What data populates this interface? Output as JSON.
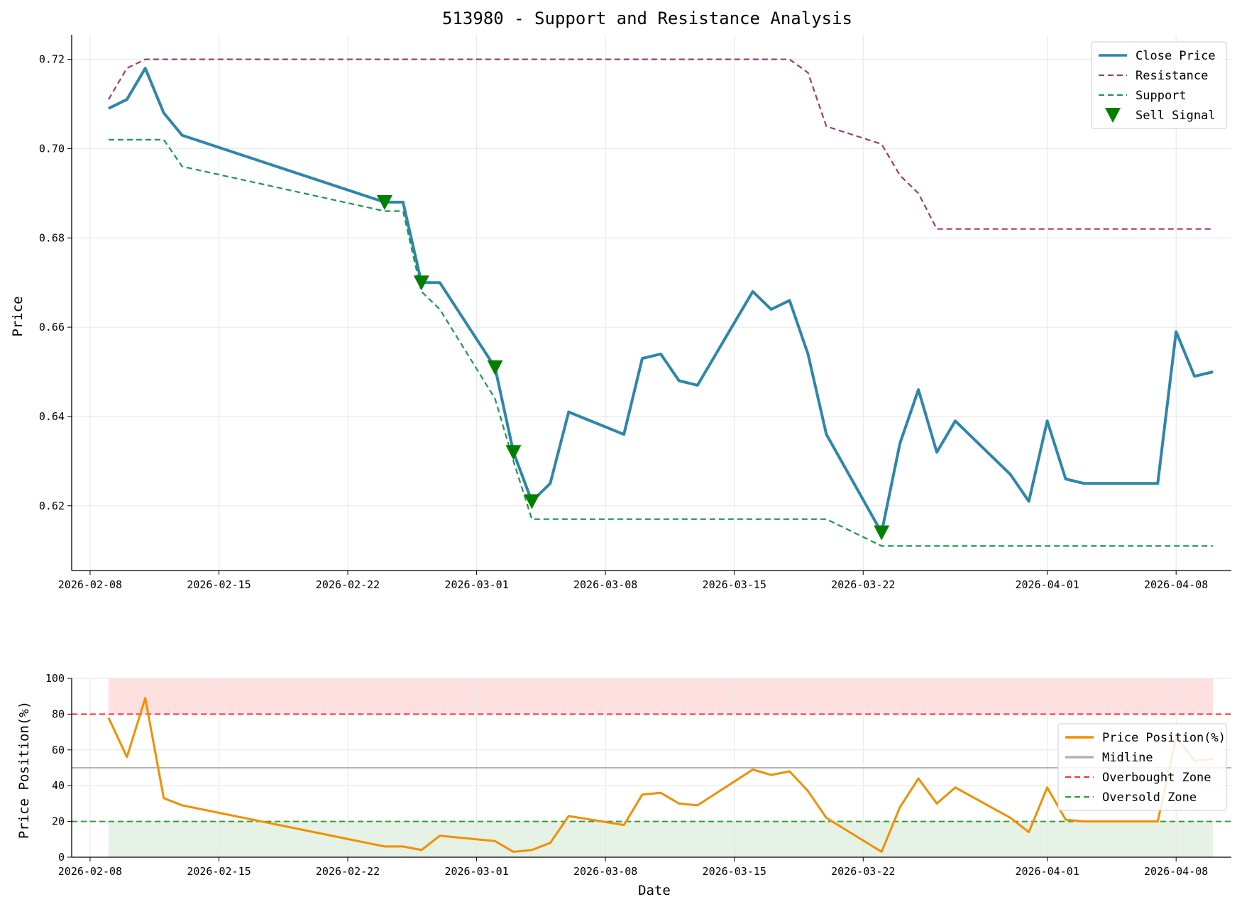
{
  "chart_data": [
    {
      "type": "line",
      "title": "513980 - Support and Resistance Analysis",
      "xlabel": "",
      "ylabel": "Price",
      "ylim": [
        0.6055,
        0.7255
      ],
      "xlim": [
        "2026-02-07",
        "2026-04-11"
      ],
      "grid": true,
      "legend": "top-right",
      "xticks": [
        "2026-02-08",
        "2026-02-15",
        "2026-02-22",
        "2026-03-01",
        "2026-03-08",
        "2026-03-15",
        "2026-03-22",
        "2026-04-01",
        "2026-04-08"
      ],
      "yticks": [
        0.62,
        0.64,
        0.66,
        0.68,
        0.7,
        0.72
      ],
      "ytick_labels": [
        "0.62",
        "0.64",
        "0.66",
        "0.68",
        "0.70",
        "0.72"
      ],
      "x": [
        "2026-02-09",
        "2026-02-10",
        "2026-02-11",
        "2026-02-12",
        "2026-02-13",
        "2026-02-24",
        "2026-02-25",
        "2026-02-26",
        "2026-02-27",
        "2026-03-02",
        "2026-03-03",
        "2026-03-04",
        "2026-03-05",
        "2026-03-06",
        "2026-03-09",
        "2026-03-10",
        "2026-03-11",
        "2026-03-12",
        "2026-03-13",
        "2026-03-16",
        "2026-03-17",
        "2026-03-18",
        "2026-03-19",
        "2026-03-20",
        "2026-03-23",
        "2026-03-24",
        "2026-03-25",
        "2026-03-26",
        "2026-03-27",
        "2026-03-30",
        "2026-03-31",
        "2026-04-01",
        "2026-04-02",
        "2026-04-03",
        "2026-04-06",
        "2026-04-07",
        "2026-04-08",
        "2026-04-09",
        "2026-04-10"
      ],
      "series": [
        {
          "name": "Close Price",
          "color": "#2E86AB",
          "style": "solid",
          "values": [
            0.709,
            0.711,
            0.718,
            0.708,
            0.703,
            0.688,
            0.688,
            0.67,
            0.67,
            0.651,
            0.632,
            0.621,
            0.625,
            0.641,
            0.636,
            0.653,
            0.654,
            0.648,
            0.647,
            0.668,
            0.664,
            0.666,
            0.654,
            0.636,
            0.614,
            0.634,
            0.646,
            0.632,
            0.639,
            0.627,
            0.621,
            0.639,
            0.626,
            0.625,
            0.625,
            0.625,
            0.659,
            0.649,
            0.65
          ]
        },
        {
          "name": "Resistance",
          "color": "#A23B72",
          "style": "dashed",
          "values": [
            0.711,
            0.718,
            0.72,
            0.72,
            0.72,
            0.72,
            0.72,
            0.72,
            0.72,
            0.72,
            0.72,
            0.72,
            0.72,
            0.72,
            0.72,
            0.72,
            0.72,
            0.72,
            0.72,
            0.72,
            0.72,
            0.72,
            0.717,
            0.705,
            0.701,
            0.694,
            0.69,
            0.682,
            0.682,
            0.682,
            0.682,
            0.682,
            0.682,
            0.682,
            0.682,
            0.682,
            0.682,
            0.682,
            0.682
          ]
        },
        {
          "name": "Support",
          "color": "#1A9850",
          "style": "dashed",
          "values": [
            0.702,
            0.702,
            0.702,
            0.702,
            0.696,
            0.686,
            0.686,
            0.668,
            0.664,
            0.644,
            0.63,
            0.617,
            0.617,
            0.617,
            0.617,
            0.617,
            0.617,
            0.617,
            0.617,
            0.617,
            0.617,
            0.617,
            0.617,
            0.617,
            0.611,
            0.611,
            0.611,
            0.611,
            0.611,
            0.611,
            0.611,
            0.611,
            0.611,
            0.611,
            0.611,
            0.611,
            0.611,
            0.611,
            0.611
          ]
        }
      ],
      "markers": {
        "name": "Sell Signal",
        "color": "#008000",
        "symbol": "triangle-down",
        "x": [
          "2026-02-24",
          "2026-02-26",
          "2026-03-02",
          "2026-03-03",
          "2026-03-04",
          "2026-03-23"
        ],
        "y": [
          0.688,
          0.67,
          0.651,
          0.632,
          0.621,
          0.614
        ]
      }
    },
    {
      "type": "line",
      "title": "",
      "xlabel": "Date",
      "ylabel": "Price Position(%)",
      "ylim": [
        0,
        100
      ],
      "xlim": [
        "2026-02-07",
        "2026-04-11"
      ],
      "grid": true,
      "legend": "right",
      "xticks": [
        "2026-02-08",
        "2026-02-15",
        "2026-02-22",
        "2026-03-01",
        "2026-03-08",
        "2026-03-15",
        "2026-03-22",
        "2026-04-01",
        "2026-04-08"
      ],
      "yticks": [
        0,
        20,
        40,
        60,
        80,
        100
      ],
      "ytick_labels": [
        "0",
        "20",
        "40",
        "60",
        "80",
        "100"
      ],
      "x": [
        "2026-02-09",
        "2026-02-10",
        "2026-02-11",
        "2026-02-12",
        "2026-02-13",
        "2026-02-24",
        "2026-02-25",
        "2026-02-26",
        "2026-02-27",
        "2026-03-02",
        "2026-03-03",
        "2026-03-04",
        "2026-03-05",
        "2026-03-06",
        "2026-03-09",
        "2026-03-10",
        "2026-03-11",
        "2026-03-12",
        "2026-03-13",
        "2026-03-16",
        "2026-03-17",
        "2026-03-18",
        "2026-03-19",
        "2026-03-20",
        "2026-03-23",
        "2026-03-24",
        "2026-03-25",
        "2026-03-26",
        "2026-03-27",
        "2026-03-30",
        "2026-03-31",
        "2026-04-01",
        "2026-04-02",
        "2026-04-03",
        "2026-04-06",
        "2026-04-07",
        "2026-04-08",
        "2026-04-09",
        "2026-04-10"
      ],
      "series": [
        {
          "name": "Price Position(%)",
          "color": "#F18F01",
          "style": "solid",
          "values": [
            78,
            56,
            89,
            33,
            29,
            6,
            6,
            4,
            12,
            9,
            3,
            4,
            8,
            23,
            18,
            35,
            36,
            30,
            29,
            49,
            46,
            48,
            37,
            22,
            3,
            28,
            44,
            30,
            39,
            22,
            14,
            39,
            21,
            20,
            20,
            20,
            67,
            54,
            55
          ]
        }
      ],
      "hlines": [
        {
          "name": "Midline",
          "y": 50,
          "color": "#B4B4B4",
          "style": "solid"
        },
        {
          "name": "Overbought Zone",
          "y": 80,
          "color": "#FF3333",
          "style": "dashed"
        },
        {
          "name": "Oversold Zone",
          "y": 20,
          "color": "#2CA02C",
          "style": "dashed"
        }
      ],
      "bands": [
        {
          "from": 80,
          "to": 100,
          "color": "#FFE0E0"
        },
        {
          "from": 0,
          "to": 20,
          "color": "#E5F2E5"
        }
      ]
    }
  ]
}
